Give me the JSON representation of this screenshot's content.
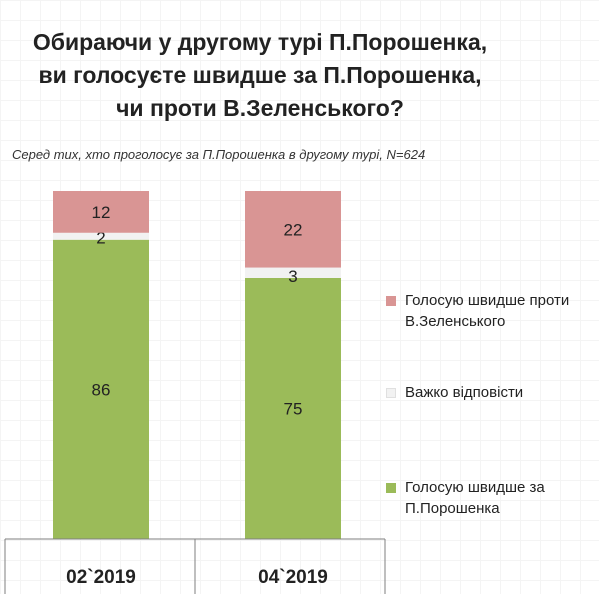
{
  "chart_data": {
    "type": "bar",
    "stacked": true,
    "title_lines": [
      "Обираючи у другому турі П.Порошенка,",
      "ви голосуєте швидше за П.Порошенка,",
      "чи проти В.Зеленського?"
    ],
    "subtitle": "Серед тих, хто проголосує за П.Порошенка в другому турі, N=624",
    "categories": [
      "02`2019",
      "04`2019"
    ],
    "ylim": [
      0,
      100
    ],
    "legend_position": "right",
    "series": [
      {
        "name": "Голосую швидше за П.Порошенка",
        "values": [
          86,
          75
        ],
        "color": "#9bbb59"
      },
      {
        "name": "Важко відповісти",
        "values": [
          2,
          3
        ],
        "color": "#f2f2f2"
      },
      {
        "name": "Голосую швидше проти В.Зеленського",
        "values": [
          12,
          22
        ],
        "color": "#d99594"
      }
    ]
  }
}
